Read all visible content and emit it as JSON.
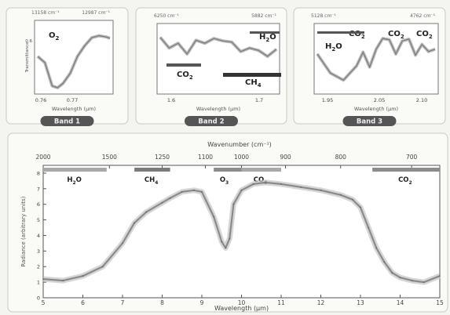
{
  "bands": [
    {
      "label": "Band 1",
      "y_tick": "0.6",
      "x_ticks": [
        "0.76",
        "0.77"
      ],
      "xlabel": "Wavelength (µm)",
      "ylabel": "Transmittance",
      "top_left": "13158 cm⁻¹",
      "top_right": "12987 cm⁻¹",
      "species": [
        {
          "name": "O",
          "sub": "2"
        }
      ]
    },
    {
      "label": "Band 2",
      "x_ticks": [
        "1.6",
        "1.7"
      ],
      "xlabel": "Wavelength (µm)",
      "top_left": "6250 cm⁻¹",
      "top_right": "5882 cm⁻¹",
      "species": [
        {
          "name": "H",
          "sub": "2",
          "tail": "O"
        },
        {
          "name": "CO",
          "sub": "2"
        },
        {
          "name": "CH",
          "sub": "4"
        }
      ]
    },
    {
      "label": "Band 3",
      "x_ticks": [
        "1.95",
        "2.05",
        "2.10"
      ],
      "xlabel": "Wavelength (µm)",
      "top_left": "5128 cm⁻¹",
      "top_right": "4762 cm⁻¹",
      "species": [
        {
          "name": "H",
          "sub": "2",
          "tail": "O"
        },
        {
          "name": "CO",
          "sub": "2"
        },
        {
          "name": "CO",
          "sub": "2"
        },
        {
          "name": "CO",
          "sub": "2"
        }
      ]
    }
  ],
  "main": {
    "top_axis_label": "Wavenumber (cm⁻¹)",
    "top_ticks": [
      "2000",
      "1500",
      "1250",
      "1100",
      "1000",
      "900",
      "800",
      "700"
    ],
    "xlabel": "Wavelength (µm)",
    "ylabel": "Radiance (arbitrary units)",
    "y_ticks": [
      "0",
      "1",
      "2",
      "3",
      "4",
      "5",
      "6",
      "7",
      "8"
    ],
    "gas_bands": [
      {
        "name": "H",
        "sub": "2",
        "tail": "O",
        "x0": 5.0,
        "x1": 6.6,
        "color": "#a8a8a8"
      },
      {
        "name": "CH",
        "sub": "4",
        "x0": 7.3,
        "x1": 8.2,
        "color": "#7b7b7b"
      },
      {
        "name": "O",
        "sub": "3",
        "x0": 9.3,
        "x1": 10.0,
        "color": "#8c8c8c"
      },
      {
        "name": "CO",
        "sub": "2",
        "x0": 10.0,
        "x1": 11.0,
        "color": "#a8a8a8"
      },
      {
        "name": "CO",
        "sub": "2",
        "x0": 13.3,
        "x1": 15.0,
        "color": "#8c8c8c"
      }
    ]
  },
  "chart_data": [
    {
      "type": "line",
      "title": "",
      "xlabel": "Wavelength (µm)",
      "ylabel": "Transmittance",
      "x_ticks": [
        "0.76",
        "0.77"
      ],
      "series": [
        {
          "x": [
            0.755,
            0.757,
            0.759,
            0.7605,
            0.762,
            0.764,
            0.766,
            0.768,
            0.77,
            0.772,
            0.774,
            0.775
          ],
          "y": [
            0.55,
            0.45,
            0.08,
            0.05,
            0.12,
            0.28,
            0.55,
            0.72,
            0.85,
            0.88,
            0.86,
            0.84
          ]
        }
      ]
    },
    {
      "type": "line",
      "title": "",
      "xlabel": "Wavelength (µm)",
      "x_ticks": [
        "1.6",
        "1.7"
      ],
      "series": [
        {
          "x": [
            1.58,
            1.59,
            1.6,
            1.61,
            1.62,
            1.63,
            1.64,
            1.65,
            1.66,
            1.67,
            1.68,
            1.69,
            1.7,
            1.71
          ],
          "y": [
            0.9,
            0.72,
            0.8,
            0.62,
            0.85,
            0.8,
            0.88,
            0.84,
            0.82,
            0.66,
            0.72,
            0.68,
            0.58,
            0.7
          ]
        }
      ]
    },
    {
      "type": "line",
      "title": "",
      "xlabel": "Wavelength (µm)",
      "x_ticks": [
        "1.95",
        "2.05",
        "2.10"
      ],
      "series": [
        {
          "x": [
            1.93,
            1.95,
            1.97,
            1.99,
            2.0,
            2.01,
            2.02,
            2.03,
            2.04,
            2.05,
            2.06,
            2.07,
            2.08,
            2.09,
            2.1,
            2.11
          ],
          "y": [
            0.62,
            0.3,
            0.18,
            0.42,
            0.65,
            0.4,
            0.7,
            0.88,
            0.86,
            0.62,
            0.84,
            0.87,
            0.6,
            0.78,
            0.66,
            0.7
          ]
        }
      ]
    },
    {
      "type": "line",
      "title": "",
      "xlabel": "Wavelength (µm)",
      "ylabel": "Radiance (arbitrary units)",
      "top_axis_label": "Wavenumber (cm⁻¹)",
      "xlim": [
        5,
        15
      ],
      "ylim": [
        0,
        8.5
      ],
      "x_ticks": [
        "5",
        "6",
        "7",
        "8",
        "9",
        "10",
        "11",
        "12",
        "13",
        "14",
        "15"
      ],
      "series": [
        {
          "x": [
            5.0,
            5.5,
            6.0,
            6.5,
            7.0,
            7.3,
            7.6,
            8.0,
            8.2,
            8.5,
            8.8,
            9.0,
            9.3,
            9.5,
            9.6,
            9.7,
            9.8,
            10.0,
            10.3,
            10.6,
            11.0,
            11.5,
            12.0,
            12.5,
            12.8,
            13.0,
            13.2,
            13.4,
            13.6,
            13.8,
            14.0,
            14.3,
            14.6,
            15.0
          ],
          "y": [
            1.2,
            1.1,
            1.4,
            2.0,
            3.5,
            4.8,
            5.5,
            6.1,
            6.4,
            6.8,
            6.9,
            6.8,
            5.2,
            3.6,
            3.2,
            3.8,
            6.0,
            6.9,
            7.3,
            7.4,
            7.3,
            7.1,
            6.9,
            6.6,
            6.3,
            5.8,
            4.5,
            3.2,
            2.3,
            1.6,
            1.3,
            1.1,
            1.0,
            1.4
          ]
        }
      ]
    }
  ]
}
